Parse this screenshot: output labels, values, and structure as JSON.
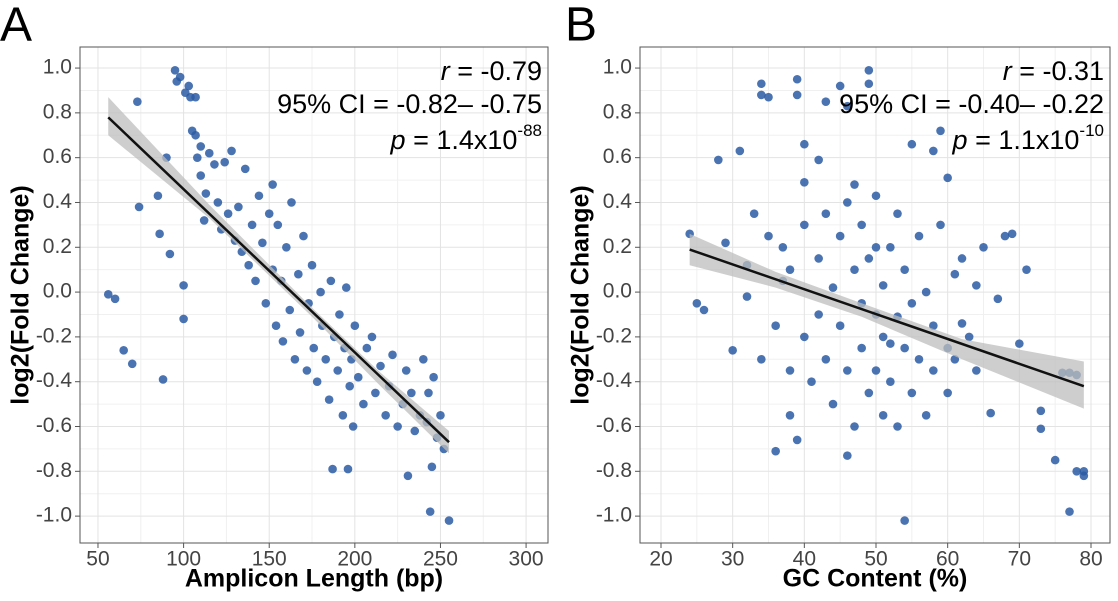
{
  "chart_data": [
    {
      "type": "scatter",
      "panel_label": "A",
      "x_label": "Amplicon Length (bp)",
      "y_label": "log2(Fold Change)",
      "color": "#2a5aa3",
      "grid": true,
      "xlim": [
        39.5,
        312.8
      ],
      "xticks": [
        50,
        100,
        150,
        200,
        250,
        300
      ],
      "ylim": [
        -1.12,
        1.094
      ],
      "yticks": [
        {
          "value": 1,
          "label": "1.0"
        },
        0.8,
        0.6,
        0.4,
        0.2,
        {
          "value": 0,
          "label": "0.0"
        },
        -0.2,
        -0.4,
        -0.6,
        -0.8,
        {
          "value": -1,
          "label": "-1.0"
        }
      ],
      "annotation": {
        "r_label": "r",
        "r_value": " = -0.79",
        "ci": "95% CI = -0.82– -0.75",
        "p_label": "p",
        "p_value": " = 1.4x10",
        "p_exp": "-88"
      },
      "fit_line": {
        "color": "#111111",
        "x": [
          56,
          255
        ],
        "y": [
          0.78,
          -0.67
        ]
      },
      "ci_band": {
        "color": "#bdbdbd",
        "x": [
          56,
          115,
          175,
          215,
          255
        ],
        "lower": [
          0.7,
          0.33,
          -0.11,
          -0.42,
          -0.72
        ],
        "upper": [
          0.87,
          0.39,
          -0.07,
          -0.36,
          -0.62
        ]
      },
      "x": [
        56,
        60,
        65,
        70,
        73,
        74,
        85,
        86,
        88,
        90,
        92,
        95,
        96,
        98,
        100,
        100,
        101,
        103,
        104,
        105,
        107,
        107,
        108,
        110,
        110,
        112,
        113,
        115,
        118,
        120,
        122,
        124,
        126,
        128,
        130,
        132,
        134,
        136,
        138,
        140,
        142,
        144,
        146,
        148,
        150,
        152,
        152,
        154,
        155,
        157,
        158,
        160,
        162,
        163,
        165,
        167,
        168,
        170,
        172,
        173,
        175,
        176,
        178,
        180,
        181,
        183,
        185,
        186,
        187,
        188,
        190,
        191,
        193,
        194,
        195,
        196,
        197,
        198,
        199,
        200,
        202,
        205,
        207,
        210,
        212,
        215,
        218,
        220,
        222,
        225,
        228,
        230,
        231,
        233,
        235,
        238,
        240,
        242,
        243,
        244,
        245,
        246,
        248,
        250,
        252,
        255
      ],
      "values": [
        -0.01,
        -0.03,
        -0.26,
        -0.32,
        0.85,
        0.38,
        0.43,
        0.26,
        -0.39,
        0.6,
        0.17,
        0.99,
        0.94,
        0.96,
        0.03,
        -0.12,
        0.89,
        0.92,
        0.87,
        0.72,
        0.87,
        0.7,
        0.6,
        0.65,
        0.52,
        0.32,
        0.44,
        0.62,
        0.57,
        0.4,
        0.28,
        0.58,
        0.35,
        0.63,
        0.23,
        0.38,
        0.18,
        0.55,
        0.12,
        0.3,
        0.05,
        0.43,
        0.22,
        -0.05,
        0.35,
        0.48,
        0.1,
        -0.15,
        0.3,
        0.05,
        -0.22,
        0.2,
        -0.08,
        0.4,
        -0.3,
        0.08,
        -0.18,
        0.25,
        -0.35,
        -0.05,
        0.12,
        -0.25,
        -0.4,
        0.0,
        -0.15,
        -0.3,
        -0.48,
        0.05,
        -0.79,
        -0.2,
        -0.35,
        -0.1,
        -0.55,
        -0.25,
        0.02,
        -0.79,
        -0.42,
        -0.3,
        -0.6,
        -0.15,
        -0.38,
        -0.5,
        -0.25,
        -0.2,
        -0.45,
        -0.33,
        -0.55,
        -0.42,
        -0.28,
        -0.6,
        -0.5,
        -0.35,
        -0.82,
        -0.45,
        -0.62,
        -0.55,
        -0.3,
        -0.58,
        -0.45,
        -0.98,
        -0.78,
        -0.38,
        -0.65,
        -0.55,
        -0.7,
        -1.02
      ]
    },
    {
      "type": "scatter",
      "panel_label": "B",
      "x_label": "GC Content (%)",
      "y_label": "log2(Fold Change)",
      "color": "#2a5aa3",
      "grid": true,
      "xlim": [
        17.07,
        82.65
      ],
      "xticks": [
        20,
        30,
        40,
        50,
        60,
        70,
        80
      ],
      "ylim": [
        -1.12,
        1.094
      ],
      "yticks": [
        {
          "value": 1,
          "label": "1.0"
        },
        0.8,
        0.6,
        0.4,
        0.2,
        {
          "value": 0,
          "label": "0.0"
        },
        -0.2,
        -0.4,
        -0.6,
        -0.8,
        {
          "value": -1,
          "label": "-1.0"
        }
      ],
      "annotation": {
        "r_label": "r",
        "r_value": " = -0.31",
        "ci": "95% CI = -0.40– -0.22",
        "p_label": "p",
        "p_value": " = 1.1x10",
        "p_exp": "-10"
      },
      "fit_line": {
        "color": "#111111",
        "x": [
          24,
          79
        ],
        "y": [
          0.19,
          -0.42
        ]
      },
      "ci_band": {
        "color": "#bdbdbd",
        "x": [
          24,
          36,
          48,
          62,
          79
        ],
        "lower": [
          0.12,
          0.02,
          -0.11,
          -0.3,
          -0.52
        ],
        "upper": [
          0.26,
          0.09,
          -0.05,
          -0.21,
          -0.31
        ]
      },
      "x": [
        24,
        25,
        26,
        28,
        29,
        31,
        32,
        33,
        34,
        34,
        35,
        36,
        37,
        38,
        39,
        39,
        40,
        40,
        42,
        43,
        45,
        46,
        49,
        49,
        47,
        50,
        51,
        52,
        53,
        54,
        55,
        58,
        59,
        60,
        61,
        62,
        64,
        66,
        67,
        68,
        69,
        70,
        71,
        73,
        73,
        75,
        76,
        77,
        77,
        78,
        78,
        79,
        79,
        30,
        32,
        34,
        35,
        36,
        37,
        38,
        38,
        39,
        40,
        40,
        41,
        42,
        42,
        43,
        43,
        44,
        44,
        45,
        45,
        46,
        46,
        46,
        47,
        47,
        48,
        48,
        48,
        49,
        49,
        50,
        50,
        50,
        51,
        51,
        52,
        52,
        53,
        53,
        54,
        54,
        55,
        55,
        56,
        56,
        57,
        57,
        58,
        58,
        59,
        60,
        60,
        61,
        62,
        63,
        64,
        65
      ],
      "values": [
        0.26,
        -0.05,
        -0.08,
        0.59,
        0.22,
        0.63,
        -0.02,
        0.35,
        0.93,
        0.88,
        0.87,
        -0.71,
        0.2,
        -0.35,
        0.95,
        0.88,
        0.49,
        0.66,
        0.59,
        0.85,
        0.92,
        0.83,
        0.99,
        0.93,
        0.48,
        0.2,
        0.03,
        -0.23,
        -0.11,
        -1.02,
        0.66,
        0.63,
        0.72,
        0.51,
        0.08,
        -0.14,
        0.03,
        -0.54,
        -0.03,
        0.25,
        0.26,
        -0.23,
        0.1,
        -0.53,
        -0.61,
        -0.75,
        -0.36,
        -0.36,
        -0.98,
        -0.37,
        -0.8,
        -0.8,
        -0.82,
        -0.26,
        0.12,
        -0.3,
        0.25,
        -0.15,
        0.05,
        0.1,
        -0.55,
        -0.66,
        0.3,
        -0.2,
        -0.4,
        0.15,
        -0.1,
        0.35,
        -0.3,
        0.02,
        -0.5,
        0.25,
        -0.15,
        0.4,
        -0.35,
        -0.73,
        0.1,
        -0.6,
        -0.05,
        0.3,
        -0.25,
        0.15,
        -0.45,
        -0.1,
        -0.35,
        0.43,
        -0.2,
        -0.55,
        0.2,
        -0.4,
        0.35,
        -0.6,
        -0.25,
        0.1,
        -0.45,
        -0.05,
        0.25,
        -0.3,
        -0.55,
        0.0,
        -0.15,
        -0.35,
        0.3,
        -0.25,
        -0.45,
        -0.3,
        0.15,
        -0.2,
        -0.35,
        0.2
      ]
    }
  ]
}
